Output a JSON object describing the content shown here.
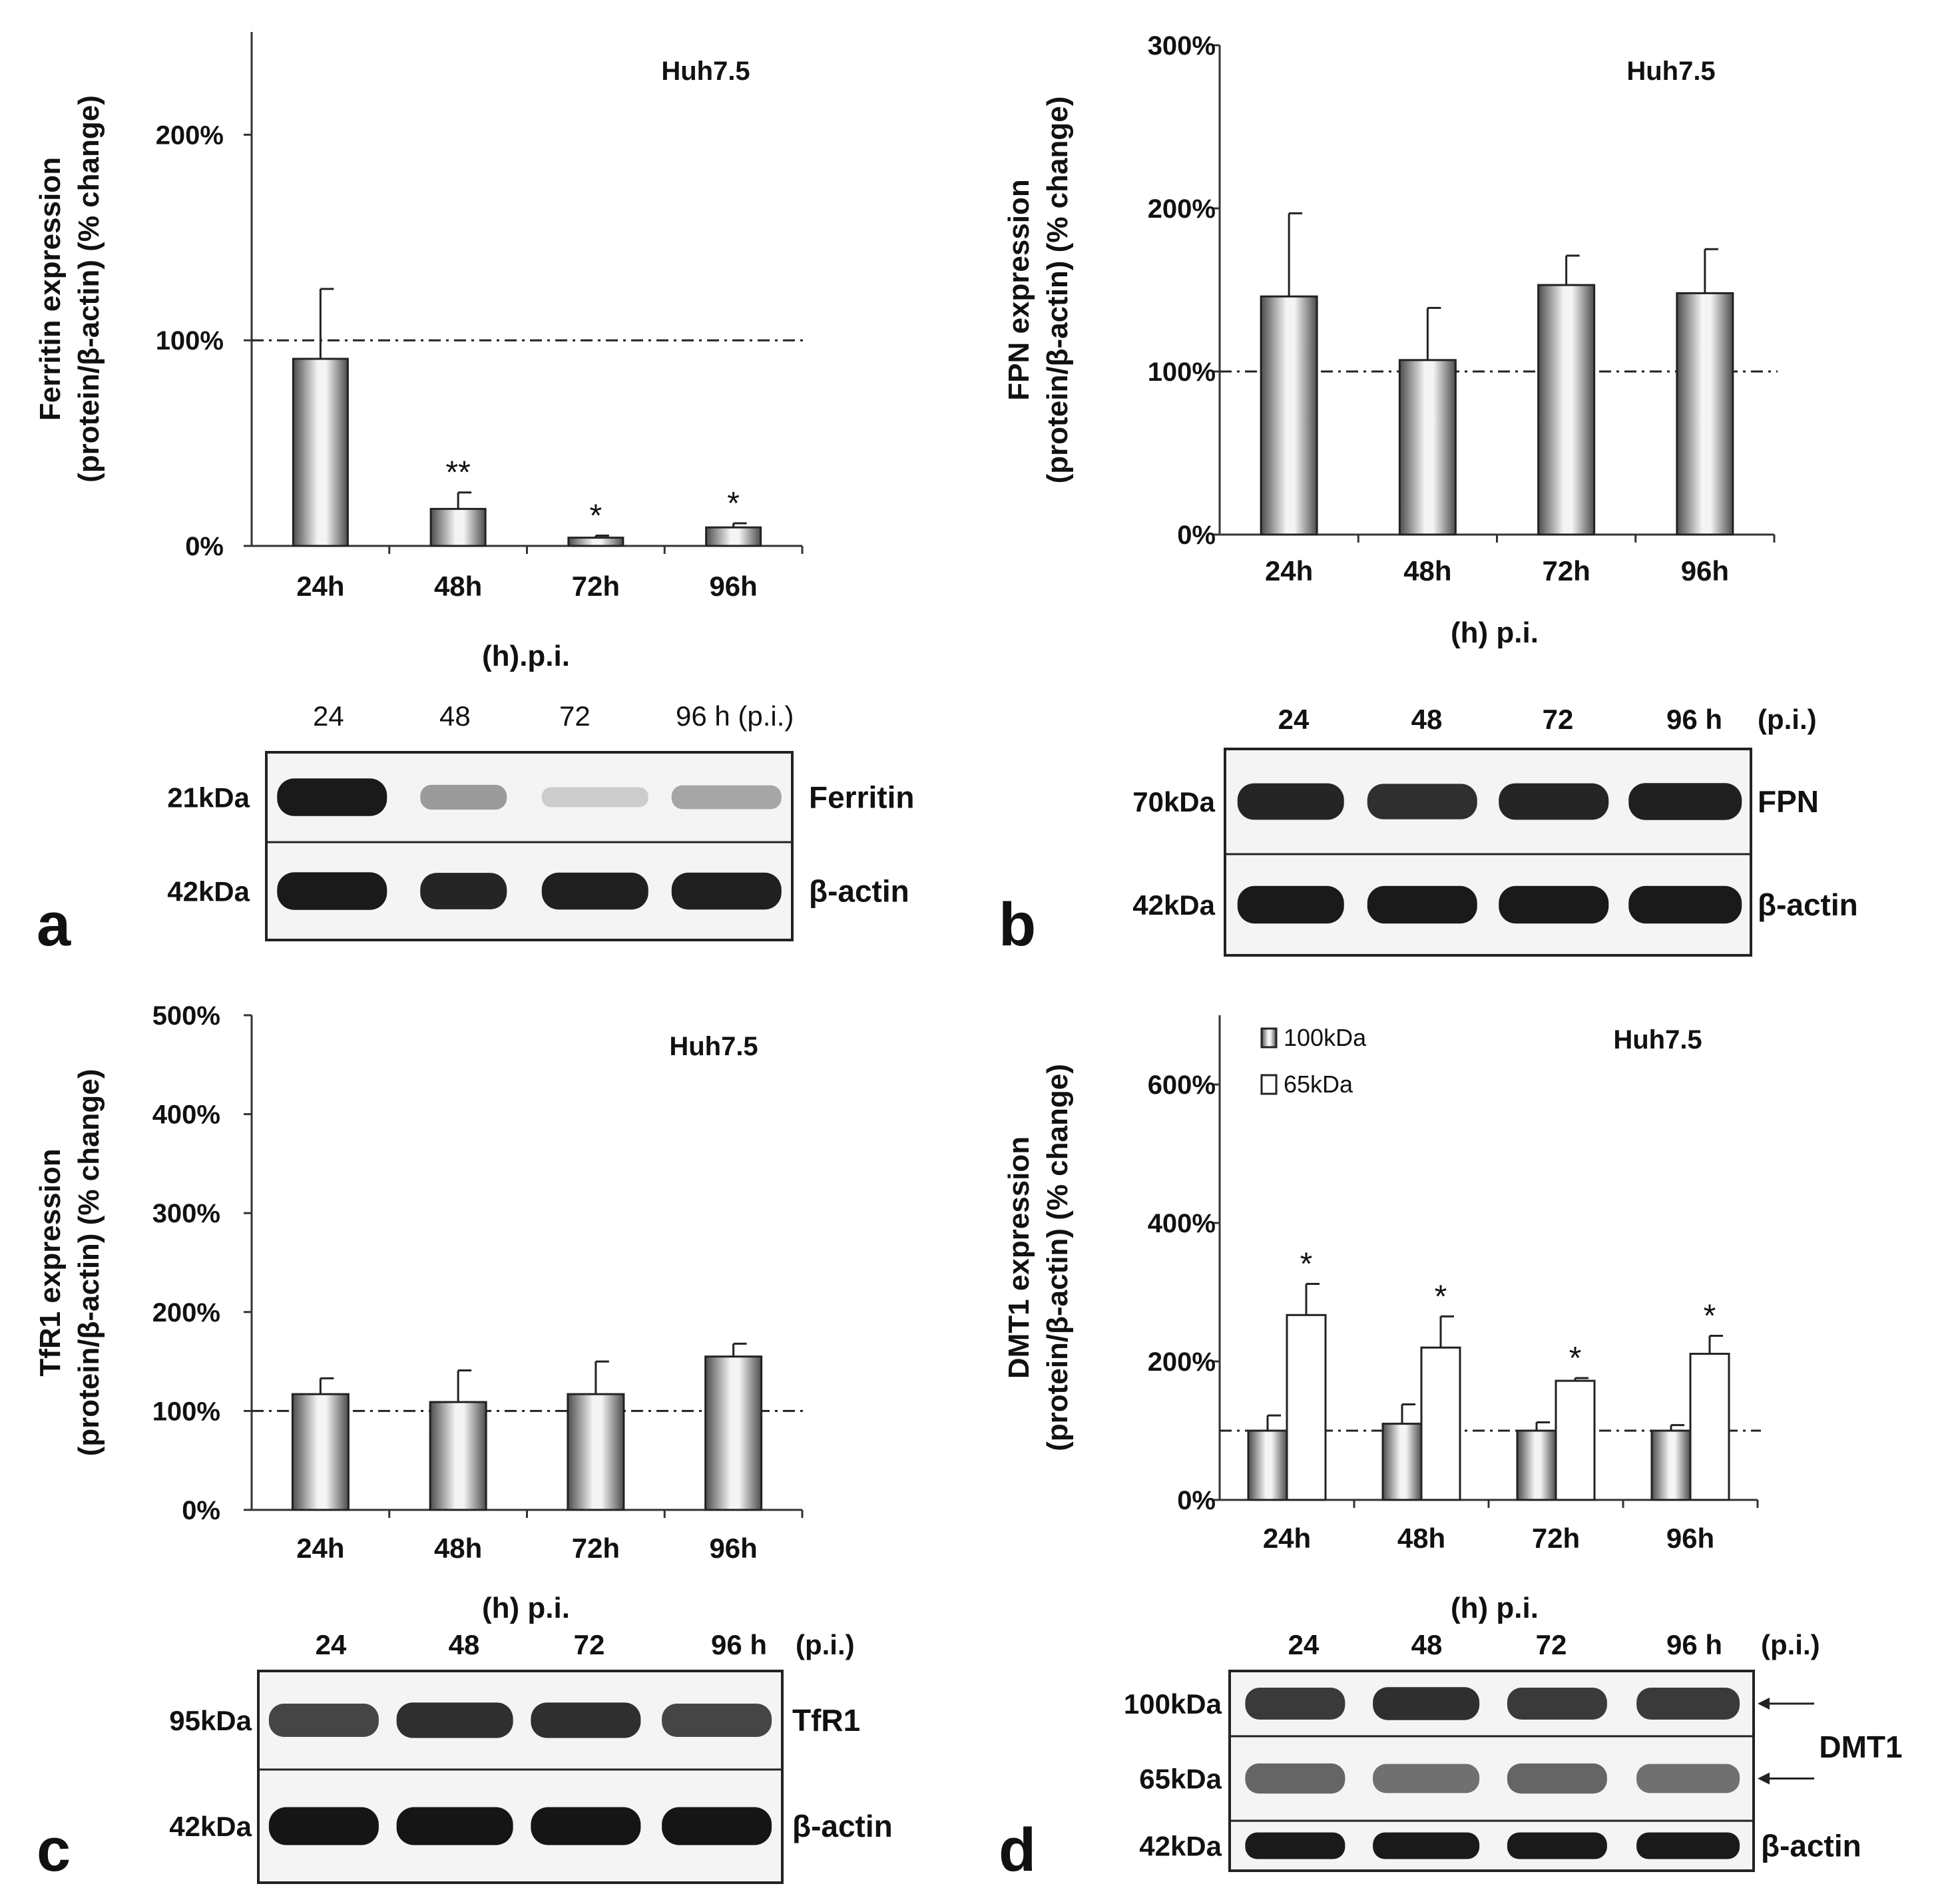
{
  "colors": {
    "bar_dark": "#5a5a5a",
    "bar_light": "#f2f2f2",
    "bar_open": "#ffffff",
    "axis": "#333333",
    "band": "#1a1a1a",
    "blot_bg": "#f4f4f4"
  },
  "chart_data": [
    {
      "panel": "a",
      "type": "bar",
      "annotation": "Huh7.5",
      "ylabel_line1": "Ferritin expression",
      "ylabel_line2": "(protein/β-actin) (% change)",
      "xlabel": "(h).p.i.",
      "categories": [
        "24h",
        "48h",
        "72h",
        "96h"
      ],
      "yticks": [
        "0%",
        "100%",
        "200%"
      ],
      "ylim": [
        0,
        250
      ],
      "reference_line": 100,
      "series": [
        {
          "style": "gradient",
          "values": [
            91,
            18,
            4,
            9
          ],
          "errors": [
            34,
            8,
            1,
            2
          ],
          "significance": [
            "",
            "**",
            "*",
            "*"
          ]
        }
      ]
    },
    {
      "panel": "b",
      "type": "bar",
      "annotation": "Huh7.5",
      "ylabel_line1": "FPN expression",
      "ylabel_line2": "(protein/β-actin) (% change)",
      "xlabel": "(h) p.i.",
      "categories": [
        "24h",
        "48h",
        "72h",
        "96h"
      ],
      "yticks": [
        "0%",
        "100%",
        "200%",
        "300%"
      ],
      "ylim": [
        0,
        300
      ],
      "reference_line": 100,
      "series": [
        {
          "style": "gradient",
          "values": [
            146,
            107,
            153,
            148
          ],
          "errors": [
            51,
            32,
            18,
            27
          ],
          "significance": [
            "",
            "",
            "",
            ""
          ]
        }
      ]
    },
    {
      "panel": "c",
      "type": "bar",
      "annotation": "Huh7.5",
      "ylabel_line1": "TfR1 expression",
      "ylabel_line2": "(protein/β-actin) (% change)",
      "xlabel": "(h) p.i.",
      "categories": [
        "24h",
        "48h",
        "72h",
        "96h"
      ],
      "yticks": [
        "0%",
        "100%",
        "200%",
        "300%",
        "400%",
        "500%"
      ],
      "ylim": [
        0,
        500
      ],
      "reference_line": 100,
      "series": [
        {
          "style": "gradient",
          "values": [
            117,
            109,
            117,
            155
          ],
          "errors": [
            16,
            32,
            33,
            13
          ],
          "significance": [
            "",
            "",
            "",
            ""
          ]
        }
      ]
    },
    {
      "panel": "d",
      "type": "bar",
      "annotation": "Huh7.5",
      "ylabel_line1": "DMT1 expression",
      "ylabel_line2": "(protein/β-actin) (% change)",
      "xlabel": "(h) p.i.",
      "categories": [
        "24h",
        "48h",
        "72h",
        "96h"
      ],
      "yticks": [
        "0%",
        "200%",
        "400%",
        "600%"
      ],
      "ylim": [
        0,
        700
      ],
      "reference_line": 100,
      "series": [
        {
          "name": "100kDa",
          "style": "gradient",
          "values": [
            100,
            110,
            100,
            100
          ],
          "errors": [
            22,
            28,
            12,
            8
          ],
          "significance": [
            "",
            "",
            "",
            ""
          ]
        },
        {
          "name": "65kDa",
          "style": "open",
          "values": [
            267,
            220,
            172,
            211
          ],
          "errors": [
            45,
            45,
            4,
            26
          ],
          "significance": [
            "*",
            "*",
            "*",
            "*"
          ]
        }
      ]
    }
  ],
  "blots": [
    {
      "panel": "a",
      "lanes": [
        "24",
        "48",
        "72",
        "96 h (p.i.)"
      ],
      "rows": [
        {
          "kda": "21kDa",
          "protein": "Ferritin",
          "intensity": [
            0.95,
            0.35,
            0.12,
            0.3
          ]
        },
        {
          "kda": "42kDa",
          "protein": "β-actin",
          "intensity": [
            0.95,
            0.9,
            0.92,
            0.92
          ]
        }
      ]
    },
    {
      "panel": "b",
      "lanes": [
        "24",
        "48",
        "72",
        "96 h"
      ],
      "lane_suffix": "(p.i.)",
      "rows": [
        {
          "kda": "70kDa",
          "protein": "FPN",
          "intensity": [
            0.9,
            0.85,
            0.9,
            0.92
          ]
        },
        {
          "kda": "42kDa",
          "protein": "β-actin",
          "intensity": [
            0.95,
            0.95,
            0.95,
            0.95
          ]
        }
      ]
    },
    {
      "panel": "c",
      "lanes": [
        "24",
        "48",
        "72",
        "96 h"
      ],
      "lane_suffix": "(p.i.)",
      "rows": [
        {
          "kda": "95kDa",
          "protein": "TfR1",
          "intensity": [
            0.75,
            0.85,
            0.85,
            0.75
          ]
        },
        {
          "kda": "42kDa",
          "protein": "β-actin",
          "intensity": [
            0.97,
            0.97,
            0.97,
            0.97
          ]
        }
      ]
    },
    {
      "panel": "d",
      "lanes": [
        "24",
        "48",
        "72",
        "96 h"
      ],
      "lane_suffix": "(p.i.)",
      "group_label": "DMT1",
      "rows": [
        {
          "kda": "100kDa",
          "protein": "",
          "intensity": [
            0.8,
            0.85,
            0.8,
            0.8
          ]
        },
        {
          "kda": "65kDa",
          "protein": "",
          "intensity": [
            0.6,
            0.55,
            0.6,
            0.55
          ]
        },
        {
          "kda": "42kDa",
          "protein": "β-actin",
          "intensity": [
            0.95,
            0.95,
            0.95,
            0.95
          ]
        }
      ]
    }
  ]
}
